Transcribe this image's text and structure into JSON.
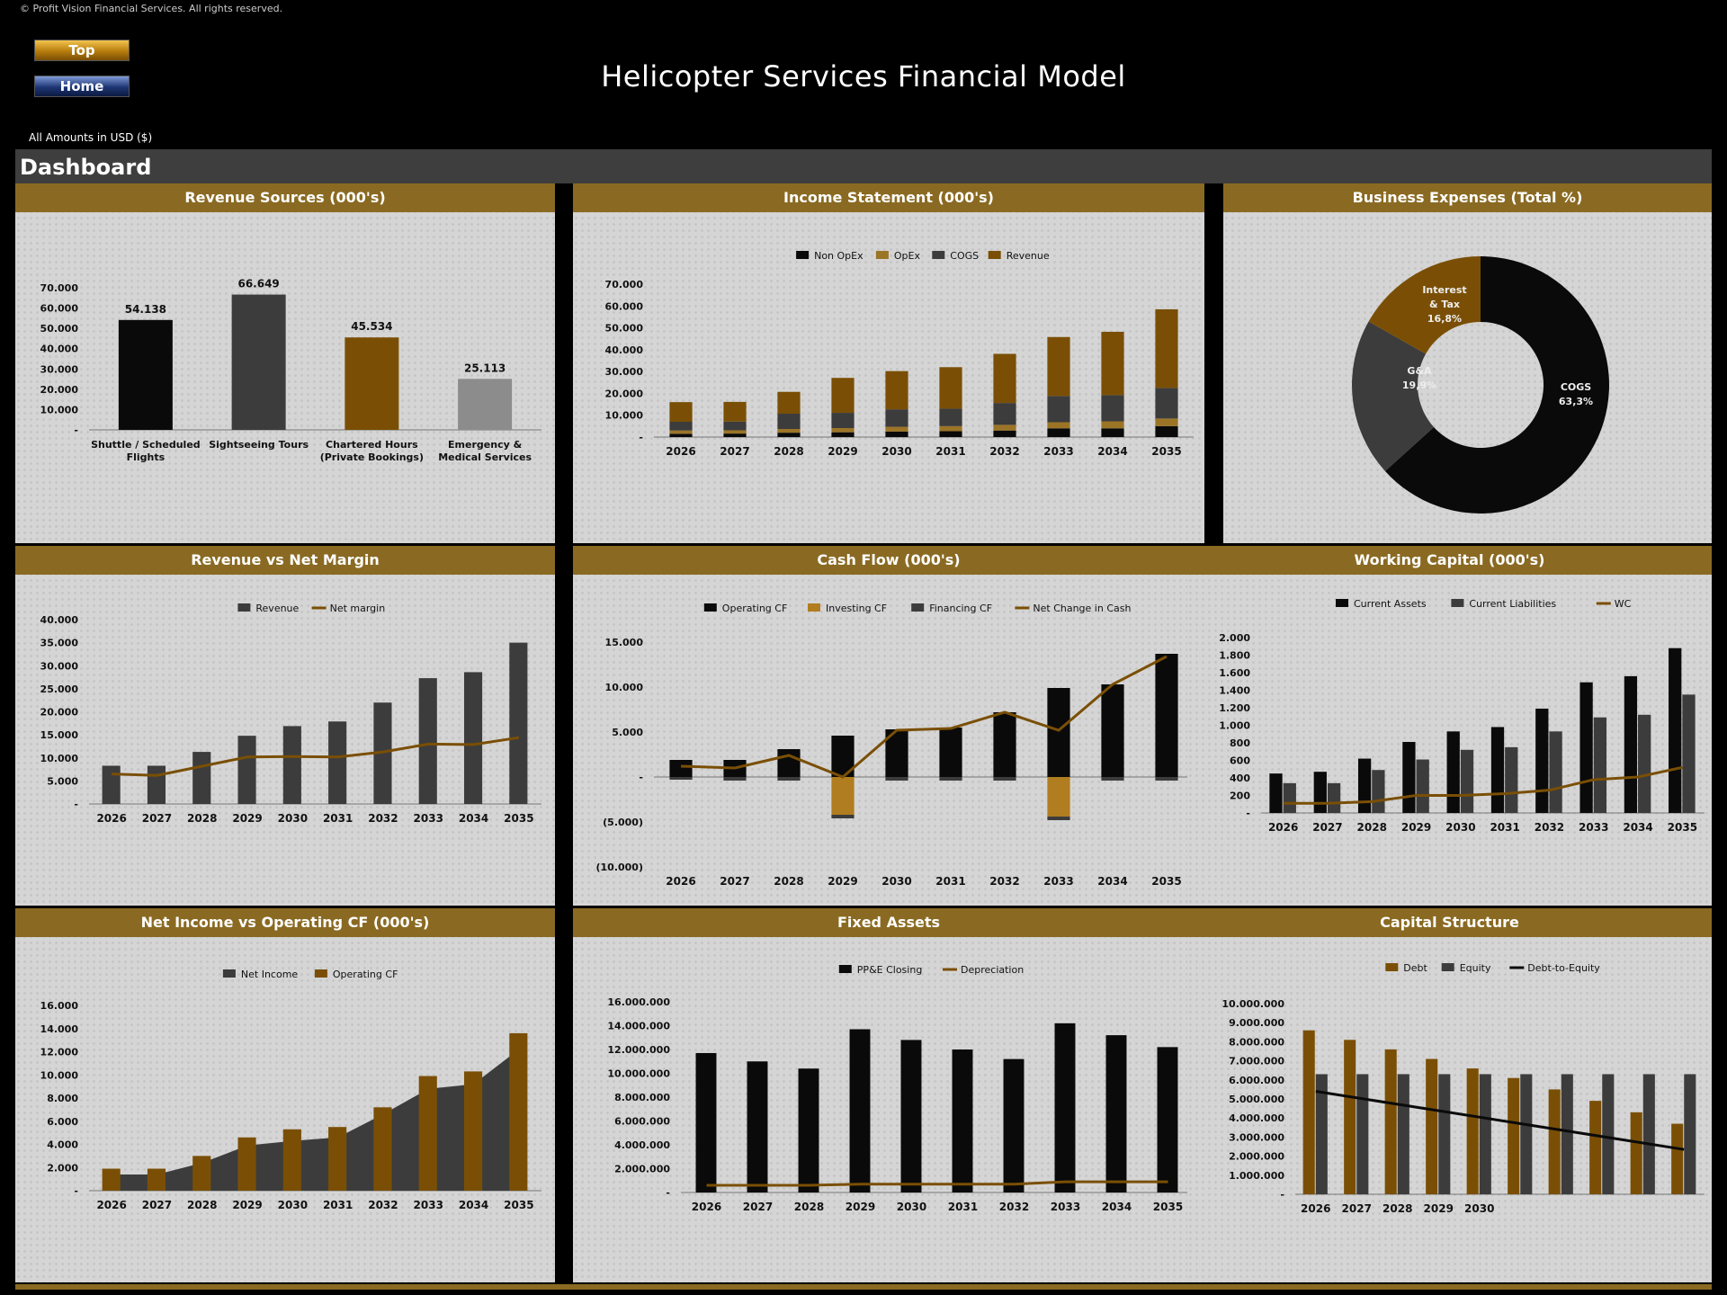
{
  "copyright": "© Profit Vision Financial Services. All rights reserved.",
  "nav": {
    "top_label": "Top",
    "home_label": "Home"
  },
  "title": "Helicopter Services  Financial Model",
  "currency_note": "All Amounts in  USD ($)",
  "dashboard_label": "Dashboard",
  "colors": {
    "gold": "#8a6a22",
    "brown": "#7a4f05",
    "darkgray": "#3c3c3c",
    "black": "#0a0a0a",
    "lightgray": "#8c8c8c",
    "orange": "#b07d20"
  },
  "chart_data": [
    {
      "id": "revenue_sources",
      "type": "bar",
      "title": "Revenue Sources (000's)",
      "categories": [
        [
          "Shuttle / Scheduled",
          "Flights"
        ],
        [
          "Sightseeing Tours"
        ],
        [
          "Chartered Hours",
          "(Private Bookings)"
        ],
        [
          "Emergency &",
          "Medical Services"
        ]
      ],
      "values": [
        54138,
        66649,
        45534,
        25113
      ],
      "value_labels": [
        "54.138",
        "66.649",
        "45.534",
        "25.113"
      ],
      "bar_colors": [
        "#0a0a0a",
        "#3c3c3c",
        "#7a4f05",
        "#8c8c8c"
      ],
      "ylim": [
        0,
        70000
      ],
      "yticks": [
        "-",
        "10.000",
        "20.000",
        "30.000",
        "40.000",
        "50.000",
        "60.000",
        "70.000"
      ]
    },
    {
      "id": "income_statement",
      "type": "bar",
      "stacked": true,
      "title": "Income Statement (000's)",
      "categories": [
        "2026",
        "2027",
        "2028",
        "2029",
        "2030",
        "2031",
        "2032",
        "2033",
        "2034",
        "2035"
      ],
      "series": [
        {
          "name": "Non OpEx",
          "color": "#0a0a0a",
          "values": [
            1500,
            1600,
            2000,
            2200,
            2500,
            2700,
            3000,
            4000,
            4000,
            5000
          ]
        },
        {
          "name": "OpEx",
          "color": "#9b7426",
          "values": [
            1500,
            1500,
            1700,
            1900,
            2200,
            2300,
            2600,
            2800,
            3200,
            3500
          ]
        },
        {
          "name": "COGS",
          "color": "#3c3c3c",
          "values": [
            4000,
            4000,
            7000,
            7000,
            8000,
            8000,
            10000,
            12000,
            12000,
            14000
          ]
        },
        {
          "name": "Revenue",
          "color": "#7a4f05",
          "values": [
            9000,
            9000,
            10000,
            16000,
            17500,
            19000,
            22500,
            27000,
            29000,
            36000
          ]
        }
      ],
      "legend_order": [
        "Non OpEx",
        "OpEx",
        "COGS",
        "Revenue"
      ],
      "ylim": [
        0,
        70000
      ],
      "yticks": [
        "-",
        "10.000",
        "20.000",
        "30.000",
        "40.000",
        "50.000",
        "60.000",
        "70.000"
      ]
    },
    {
      "id": "business_expenses",
      "type": "pie",
      "donut": true,
      "title": "Business Expenses (Total %)",
      "slices": [
        {
          "label": "COGS",
          "value": 63.3,
          "display": "63,3%",
          "color": "#0a0a0a"
        },
        {
          "label": "G&A",
          "value": 19.9,
          "display": "19,9%",
          "color": "#3c3c3c"
        },
        {
          "label": "Interest & Tax",
          "value": 16.8,
          "display": "16,8%",
          "color": "#7a4f05"
        }
      ]
    },
    {
      "id": "revenue_vs_margin",
      "type": "bar",
      "title": "Revenue vs Net Margin",
      "categories": [
        "2026",
        "2027",
        "2028",
        "2029",
        "2030",
        "2031",
        "2032",
        "2033",
        "2034",
        "2035"
      ],
      "series": [
        {
          "name": "Revenue",
          "kind": "bar",
          "color": "#3c3c3c",
          "values": [
            8300,
            8300,
            11300,
            14800,
            16900,
            17900,
            22000,
            27300,
            28600,
            35000
          ]
        },
        {
          "name": "Net margin",
          "kind": "line",
          "color": "#7a4f05",
          "values": [
            6500,
            6200,
            8200,
            10200,
            10300,
            10200,
            11300,
            13000,
            12900,
            14400
          ]
        }
      ],
      "ylim": [
        0,
        40000
      ],
      "yticks": [
        "-",
        "5.000",
        "10.000",
        "15.000",
        "20.000",
        "25.000",
        "30.000",
        "35.000",
        "40.000"
      ]
    },
    {
      "id": "cash_flow",
      "type": "bar",
      "title": "Cash Flow (000's)",
      "categories": [
        "2026",
        "2027",
        "2028",
        "2029",
        "2030",
        "2031",
        "2032",
        "2033",
        "2034",
        "2035"
      ],
      "series": [
        {
          "name": "Operating CF",
          "kind": "bar",
          "color": "#0a0a0a",
          "values": [
            1900,
            1900,
            3100,
            4600,
            5300,
            5500,
            7200,
            9900,
            10300,
            13700
          ]
        },
        {
          "name": "Investing CF",
          "kind": "bar",
          "color": "#b07d20",
          "values": [
            0,
            0,
            0,
            -4200,
            0,
            0,
            0,
            -4400,
            0,
            0
          ]
        },
        {
          "name": "Financing CF",
          "kind": "bar",
          "color": "#3c3c3c",
          "values": [
            -300,
            -400,
            -400,
            -400,
            -400,
            -400,
            -400,
            -400,
            -400,
            -400
          ]
        },
        {
          "name": "Net Change in Cash",
          "kind": "line",
          "color": "#7a4f05",
          "values": [
            1200,
            1000,
            2400,
            0,
            5200,
            5400,
            7200,
            5200,
            10300,
            13400
          ]
        }
      ],
      "ylim": [
        -10000,
        15000
      ],
      "yticks": [
        "(10.000)",
        "(5.000)",
        "-",
        "5.000",
        "10.000",
        "15.000"
      ]
    },
    {
      "id": "working_capital",
      "type": "bar",
      "title": "Working Capital (000's)",
      "categories": [
        "2026",
        "2027",
        "2028",
        "2029",
        "2030",
        "2031",
        "2032",
        "2033",
        "2034",
        "2035"
      ],
      "series": [
        {
          "name": "Current Assets",
          "kind": "bar",
          "color": "#0a0a0a",
          "values": [
            450,
            470,
            620,
            810,
            930,
            980,
            1190,
            1490,
            1560,
            1880
          ]
        },
        {
          "name": "Current Liabilities",
          "kind": "bar",
          "color": "#3c3c3c",
          "values": [
            340,
            340,
            490,
            610,
            720,
            750,
            930,
            1090,
            1120,
            1350
          ]
        },
        {
          "name": "WC",
          "kind": "line",
          "color": "#7a4f05",
          "values": [
            110,
            110,
            130,
            200,
            200,
            220,
            260,
            380,
            410,
            520
          ]
        }
      ],
      "ylim": [
        0,
        2000
      ],
      "yticks": [
        "-",
        "200",
        "400",
        "600",
        "800",
        "1.000",
        "1.200",
        "1.400",
        "1.600",
        "1.800",
        "2.000"
      ]
    },
    {
      "id": "net_income_vs_ocf",
      "type": "area",
      "title": "Net Income vs Operating CF (000's)",
      "categories": [
        "2026",
        "2027",
        "2028",
        "2029",
        "2030",
        "2031",
        "2032",
        "2033",
        "2034",
        "2035"
      ],
      "series": [
        {
          "name": "Net Income",
          "kind": "area",
          "color": "#3c3c3c",
          "values": [
            1400,
            1400,
            2400,
            3900,
            4300,
            4600,
            6600,
            8800,
            9200,
            12200
          ]
        },
        {
          "name": "Operating CF",
          "kind": "bar",
          "color": "#7a4f05",
          "values": [
            1900,
            1900,
            3000,
            4600,
            5300,
            5500,
            7200,
            9900,
            10300,
            13600
          ]
        }
      ],
      "ylim": [
        0,
        16000
      ],
      "yticks": [
        "-",
        "2.000",
        "4.000",
        "6.000",
        "8.000",
        "10.000",
        "12.000",
        "14.000",
        "16.000"
      ]
    },
    {
      "id": "fixed_assets",
      "type": "bar",
      "title": "Fixed Assets",
      "categories": [
        "2026",
        "2027",
        "2028",
        "2029",
        "2030",
        "2031",
        "2032",
        "2033",
        "2034",
        "2035"
      ],
      "series": [
        {
          "name": "PP&E Closing",
          "kind": "bar",
          "color": "#0a0a0a",
          "values": [
            11700000,
            11000000,
            10400000,
            13700000,
            12800000,
            12000000,
            11200000,
            14200000,
            13200000,
            12200000
          ]
        },
        {
          "name": "Depreciation",
          "kind": "line",
          "color": "#7a4f05",
          "values": [
            600000,
            600000,
            600000,
            700000,
            700000,
            700000,
            700000,
            900000,
            900000,
            900000
          ]
        }
      ],
      "ylim": [
        0,
        16000000
      ],
      "yticks": [
        "-",
        "2.000.000",
        "4.000.000",
        "6.000.000",
        "8.000.000",
        "10.000.000",
        "12.000.000",
        "14.000.000",
        "16.000.000"
      ]
    },
    {
      "id": "capital_structure",
      "type": "bar",
      "title": "Capital Structure",
      "categories": [
        "2026",
        "2027",
        "2028",
        "2029",
        "2030",
        "",
        "",
        "",
        "",
        ""
      ],
      "series": [
        {
          "name": "Debt",
          "kind": "bar",
          "color": "#7a4f05",
          "values": [
            8600000,
            8100000,
            7600000,
            7100000,
            6600000,
            6100000,
            5500000,
            4900000,
            4300000,
            3700000
          ]
        },
        {
          "name": "Equity",
          "kind": "bar",
          "color": "#3c3c3c",
          "values": [
            6300000,
            6300000,
            6300000,
            6300000,
            6300000,
            6300000,
            6300000,
            6300000,
            6300000,
            6300000
          ]
        },
        {
          "name": "Debt-to-Equity",
          "kind": "line",
          "color": "#0a0a0a",
          "values": [
            5400000,
            4950000,
            4550000,
            4150000,
            3750000,
            3450000,
            3150000,
            2850000,
            2550000,
            2350000
          ]
        }
      ],
      "ylim": [
        0,
        10000000
      ],
      "yticks": [
        "-",
        "1.000.000",
        "2.000.000",
        "3.000.000",
        "4.000.000",
        "5.000.000",
        "6.000.000",
        "7.000.000",
        "8.000.000",
        "9.000.000",
        "10.000.000"
      ]
    }
  ]
}
